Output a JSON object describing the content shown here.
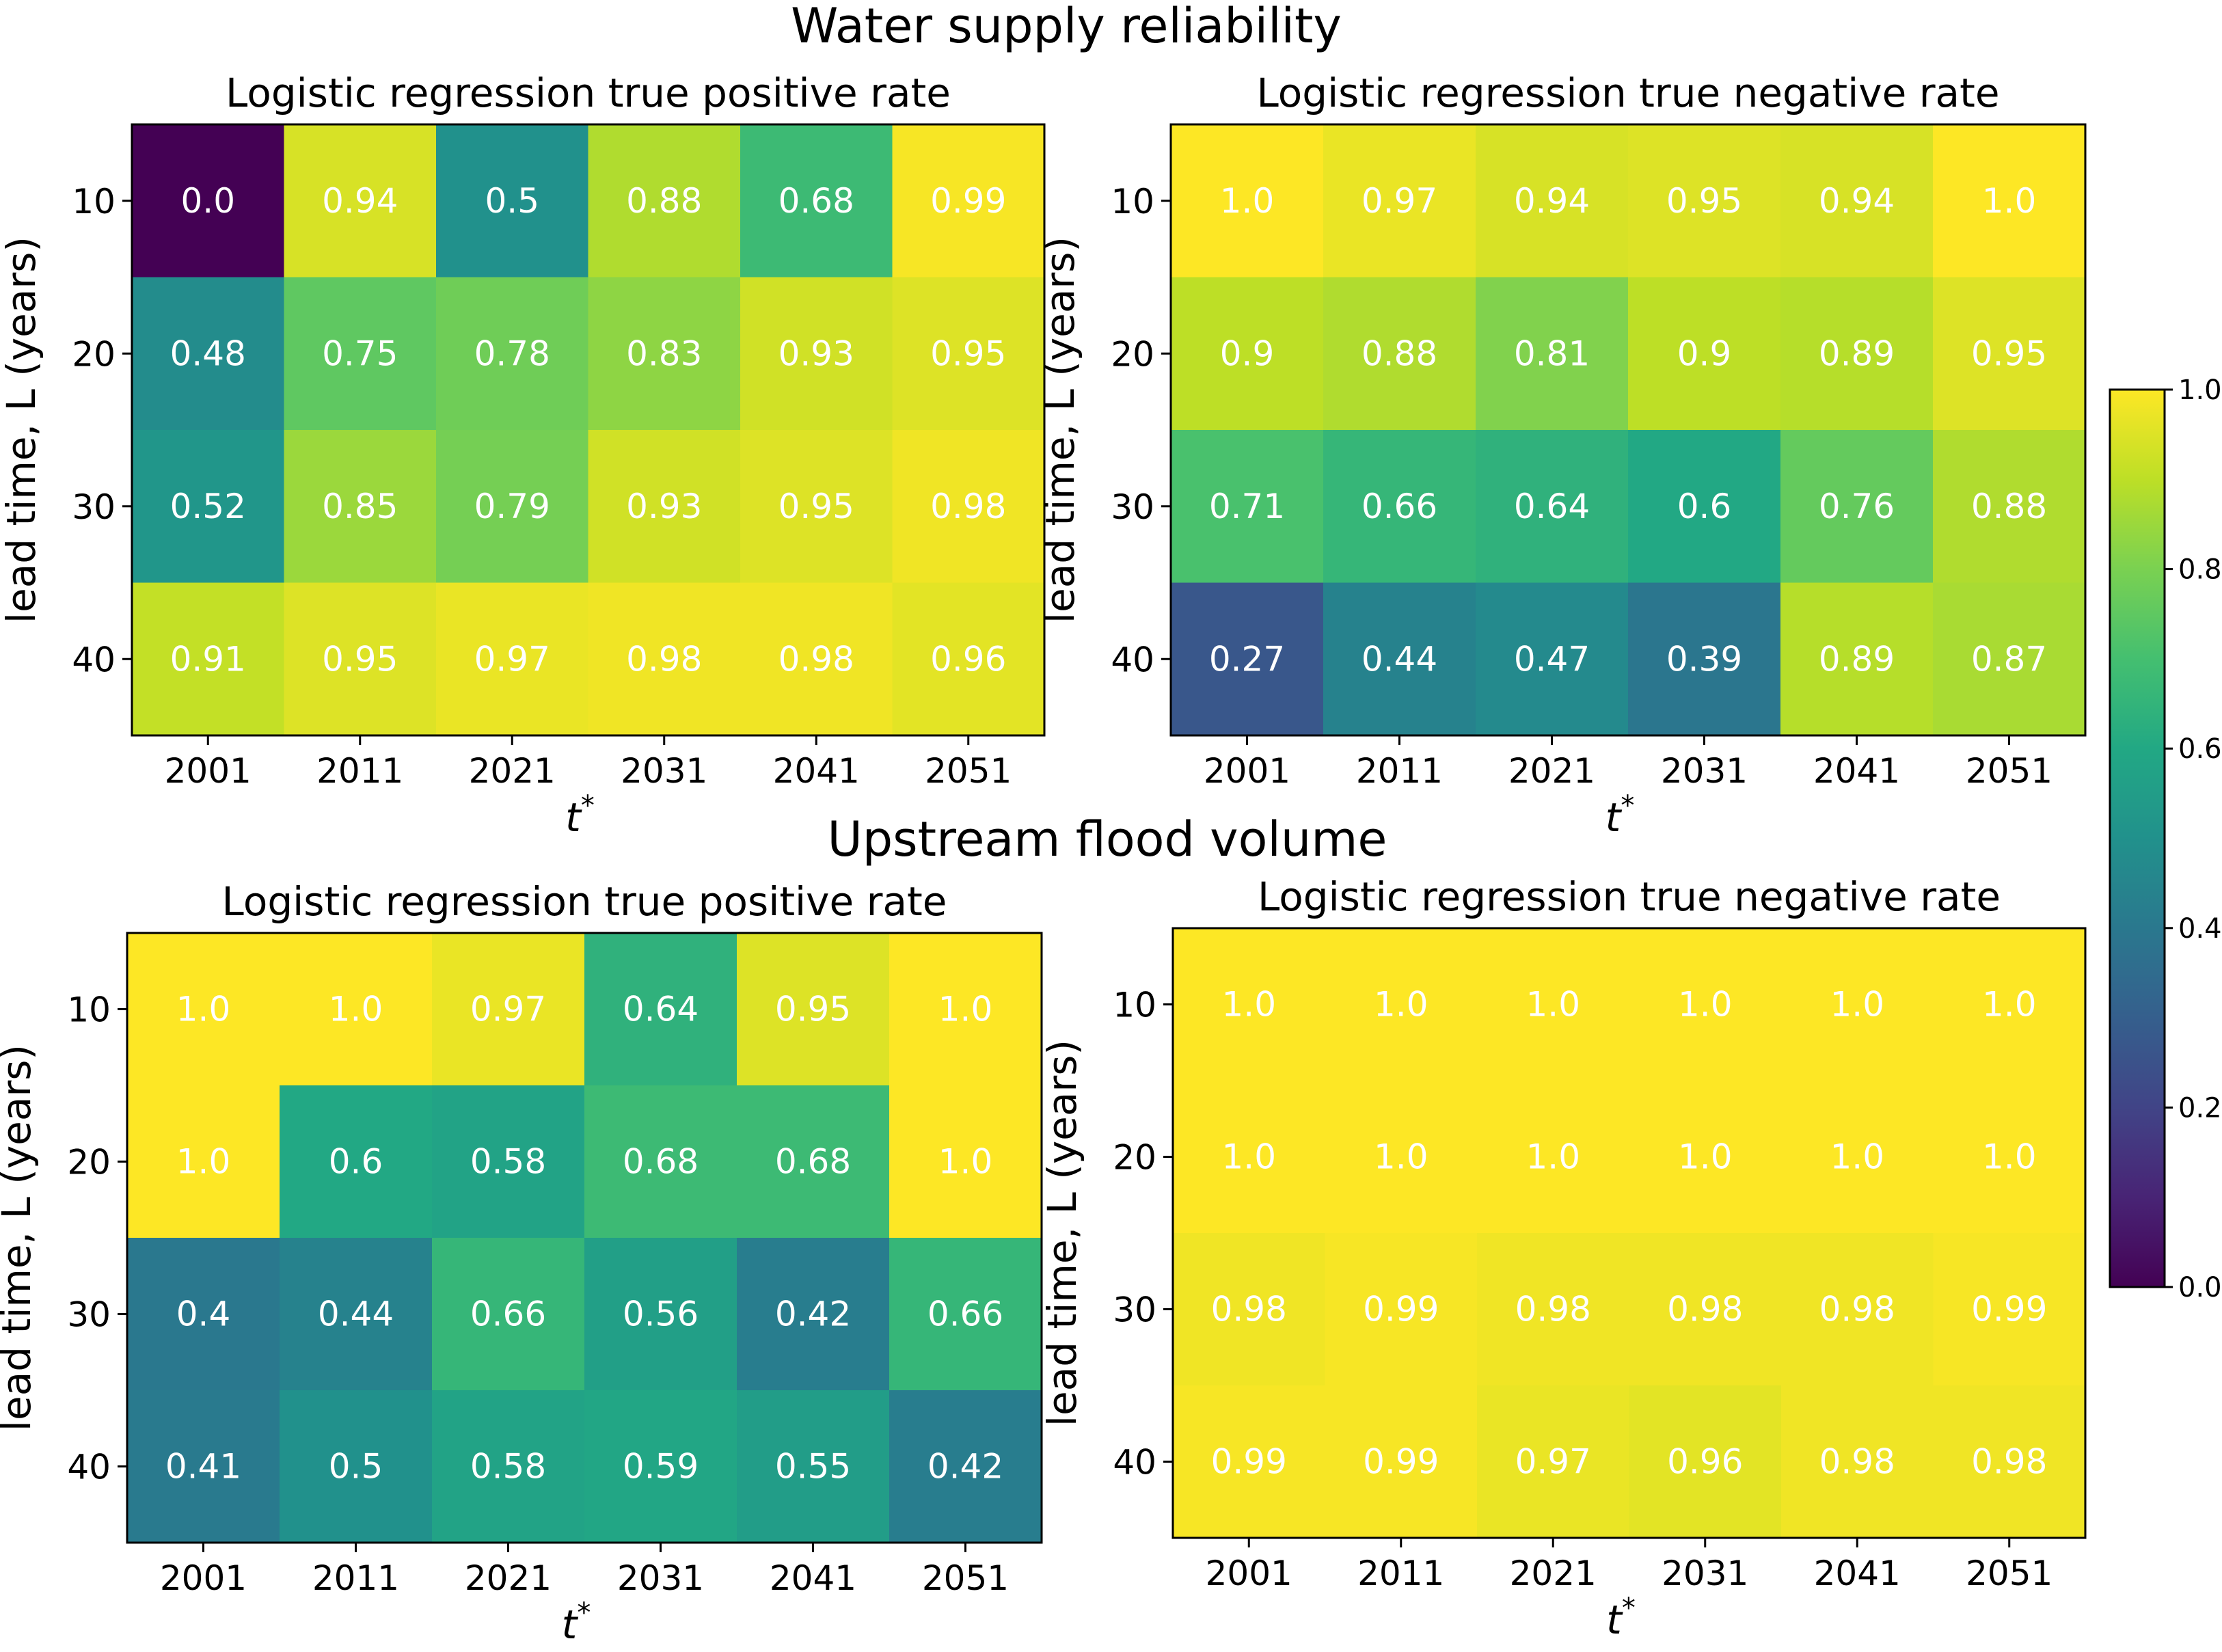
{
  "sections": {
    "top_title": "Water supply reliability",
    "bottom_title": "Upstream flood volume"
  },
  "colorbar": {
    "colormap": "viridis",
    "range": [
      0.0,
      1.0
    ],
    "ticks": [
      "0.0",
      "0.2",
      "0.4",
      "0.6",
      "0.8",
      "1.0"
    ]
  },
  "chart_data": [
    {
      "type": "heatmap",
      "group": "Water supply reliability",
      "title": "Logistic regression true positive rate",
      "xlabel": "t*",
      "ylabel": "lead time, L (years)",
      "x": [
        "2001",
        "2011",
        "2021",
        "2031",
        "2041",
        "2051"
      ],
      "y": [
        "10",
        "20",
        "30",
        "40"
      ],
      "values": [
        [
          0.0,
          0.94,
          0.5,
          0.88,
          0.68,
          0.99
        ],
        [
          0.48,
          0.75,
          0.78,
          0.83,
          0.93,
          0.95
        ],
        [
          0.52,
          0.85,
          0.79,
          0.93,
          0.95,
          0.98
        ],
        [
          0.91,
          0.95,
          0.97,
          0.98,
          0.98,
          0.96
        ]
      ],
      "labels": [
        [
          "0.0",
          "0.94",
          "0.5",
          "0.88",
          "0.68",
          "0.99"
        ],
        [
          "0.48",
          "0.75",
          "0.78",
          "0.83",
          "0.93",
          "0.95"
        ],
        [
          "0.52",
          "0.85",
          "0.79",
          "0.93",
          "0.95",
          "0.98"
        ],
        [
          "0.91",
          "0.95",
          "0.97",
          "0.98",
          "0.98",
          "0.96"
        ]
      ],
      "vmin": 0.0,
      "vmax": 1.0
    },
    {
      "type": "heatmap",
      "group": "Water supply reliability",
      "title": "Logistic regression true negative rate",
      "xlabel": "t*",
      "ylabel": "lead time, L (years)",
      "x": [
        "2001",
        "2011",
        "2021",
        "2031",
        "2041",
        "2051"
      ],
      "y": [
        "10",
        "20",
        "30",
        "40"
      ],
      "values": [
        [
          1.0,
          0.97,
          0.94,
          0.95,
          0.94,
          1.0
        ],
        [
          0.9,
          0.88,
          0.81,
          0.9,
          0.89,
          0.95
        ],
        [
          0.71,
          0.66,
          0.64,
          0.6,
          0.76,
          0.88
        ],
        [
          0.27,
          0.44,
          0.47,
          0.39,
          0.89,
          0.87
        ]
      ],
      "labels": [
        [
          "1.0",
          "0.97",
          "0.94",
          "0.95",
          "0.94",
          "1.0"
        ],
        [
          "0.9",
          "0.88",
          "0.81",
          "0.9",
          "0.89",
          "0.95"
        ],
        [
          "0.71",
          "0.66",
          "0.64",
          "0.6",
          "0.76",
          "0.88"
        ],
        [
          "0.27",
          "0.44",
          "0.47",
          "0.39",
          "0.89",
          "0.87"
        ]
      ],
      "vmin": 0.0,
      "vmax": 1.0
    },
    {
      "type": "heatmap",
      "group": "Upstream flood volume",
      "title": "Logistic regression true positive rate",
      "xlabel": "t*",
      "ylabel": "lead time, L (years)",
      "x": [
        "2001",
        "2011",
        "2021",
        "2031",
        "2041",
        "2051"
      ],
      "y": [
        "10",
        "20",
        "30",
        "40"
      ],
      "values": [
        [
          1.0,
          1.0,
          0.97,
          0.64,
          0.95,
          1.0
        ],
        [
          1.0,
          0.6,
          0.58,
          0.68,
          0.68,
          1.0
        ],
        [
          0.4,
          0.44,
          0.66,
          0.56,
          0.42,
          0.66
        ],
        [
          0.41,
          0.5,
          0.58,
          0.59,
          0.55,
          0.42
        ]
      ],
      "labels": [
        [
          "1.0",
          "1.0",
          "0.97",
          "0.64",
          "0.95",
          "1.0"
        ],
        [
          "1.0",
          "0.6",
          "0.58",
          "0.68",
          "0.68",
          "1.0"
        ],
        [
          "0.4",
          "0.44",
          "0.66",
          "0.56",
          "0.42",
          "0.66"
        ],
        [
          "0.41",
          "0.5",
          "0.58",
          "0.59",
          "0.55",
          "0.42"
        ]
      ],
      "vmin": 0.0,
      "vmax": 1.0
    },
    {
      "type": "heatmap",
      "group": "Upstream flood volume",
      "title": "Logistic regression true negative rate",
      "xlabel": "t*",
      "ylabel": "lead time, L (years)",
      "x": [
        "2001",
        "2011",
        "2021",
        "2031",
        "2041",
        "2051"
      ],
      "y": [
        "10",
        "20",
        "30",
        "40"
      ],
      "values": [
        [
          1.0,
          1.0,
          1.0,
          1.0,
          1.0,
          1.0
        ],
        [
          1.0,
          1.0,
          1.0,
          1.0,
          1.0,
          1.0
        ],
        [
          0.98,
          0.99,
          0.98,
          0.98,
          0.98,
          0.99
        ],
        [
          0.99,
          0.99,
          0.97,
          0.96,
          0.98,
          0.98
        ]
      ],
      "labels": [
        [
          "1.0",
          "1.0",
          "1.0",
          "1.0",
          "1.0",
          "1.0"
        ],
        [
          "1.0",
          "1.0",
          "1.0",
          "1.0",
          "1.0",
          "1.0"
        ],
        [
          "0.98",
          "0.99",
          "0.98",
          "0.98",
          "0.98",
          "0.99"
        ],
        [
          "0.99",
          "0.99",
          "0.97",
          "0.96",
          "0.98",
          "0.98"
        ]
      ],
      "vmin": 0.0,
      "vmax": 1.0
    }
  ]
}
